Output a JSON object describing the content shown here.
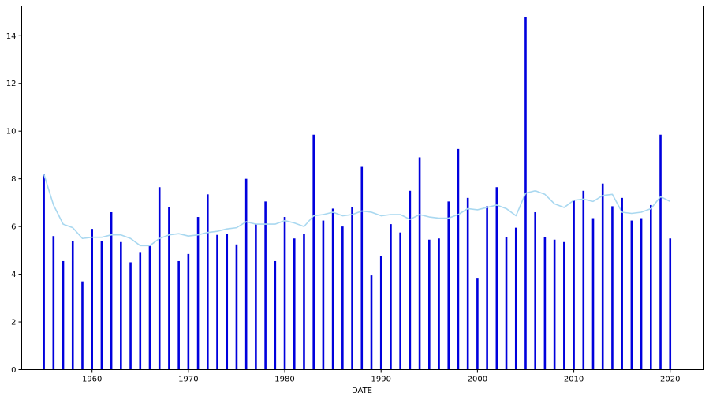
{
  "chart_data": {
    "type": "bar",
    "xlabel": "DATE",
    "ylabel": "",
    "title": "",
    "xlim": [
      1952.7,
      2023.5
    ],
    "ylim": [
      0,
      15.25
    ],
    "x_ticks": [
      1960,
      1970,
      1980,
      1990,
      2000,
      2010,
      2020
    ],
    "y_ticks": [
      0,
      2,
      4,
      6,
      8,
      10,
      12,
      14
    ],
    "grid": false,
    "x": [
      1955,
      1956,
      1957,
      1958,
      1959,
      1960,
      1961,
      1962,
      1963,
      1964,
      1965,
      1966,
      1967,
      1968,
      1969,
      1970,
      1971,
      1972,
      1973,
      1974,
      1975,
      1976,
      1977,
      1978,
      1979,
      1980,
      1981,
      1982,
      1983,
      1984,
      1985,
      1986,
      1987,
      1988,
      1989,
      1990,
      1991,
      1992,
      1993,
      1994,
      1995,
      1996,
      1997,
      1998,
      1999,
      2000,
      2001,
      2002,
      2003,
      2004,
      2005,
      2006,
      2007,
      2008,
      2009,
      2010,
      2011,
      2012,
      2013,
      2014,
      2015,
      2016,
      2017,
      2018,
      2019,
      2020
    ],
    "series": [
      {
        "type": "bar",
        "color": "#0000dd",
        "values": [
          8.2,
          5.6,
          4.55,
          5.4,
          3.7,
          5.9,
          5.4,
          6.6,
          5.35,
          4.5,
          4.9,
          5.2,
          7.65,
          6.8,
          4.55,
          4.85,
          6.4,
          7.35,
          5.65,
          5.7,
          5.25,
          8.0,
          6.1,
          7.05,
          4.55,
          6.4,
          5.5,
          5.7,
          9.85,
          6.25,
          6.75,
          6.0,
          6.8,
          8.5,
          3.95,
          4.75,
          6.1,
          5.75,
          7.5,
          8.9,
          5.45,
          5.5,
          7.05,
          9.25,
          7.2,
          3.85,
          6.85,
          7.65,
          5.55,
          5.95,
          14.8,
          6.6,
          5.55,
          5.45,
          5.35,
          7.1,
          7.5,
          6.35,
          7.8,
          6.85,
          7.2,
          6.25,
          6.35,
          6.9,
          9.85,
          5.5
        ]
      },
      {
        "type": "line",
        "color": "#a9d8f0",
        "values": [
          8.2,
          6.9,
          6.1,
          5.95,
          5.5,
          5.55,
          5.55,
          5.65,
          5.65,
          5.5,
          5.2,
          5.2,
          5.5,
          5.65,
          5.7,
          5.6,
          5.65,
          5.75,
          5.8,
          5.9,
          5.95,
          6.2,
          6.1,
          6.1,
          6.1,
          6.25,
          6.15,
          6.0,
          6.45,
          6.5,
          6.6,
          6.45,
          6.5,
          6.65,
          6.6,
          6.45,
          6.5,
          6.5,
          6.3,
          6.5,
          6.4,
          6.35,
          6.35,
          6.5,
          6.75,
          6.7,
          6.8,
          6.9,
          6.75,
          6.45,
          7.4,
          7.5,
          7.35,
          6.95,
          6.8,
          7.1,
          7.15,
          7.05,
          7.3,
          7.35,
          6.6,
          6.55,
          6.6,
          6.75,
          7.25,
          7.05
        ]
      }
    ]
  }
}
